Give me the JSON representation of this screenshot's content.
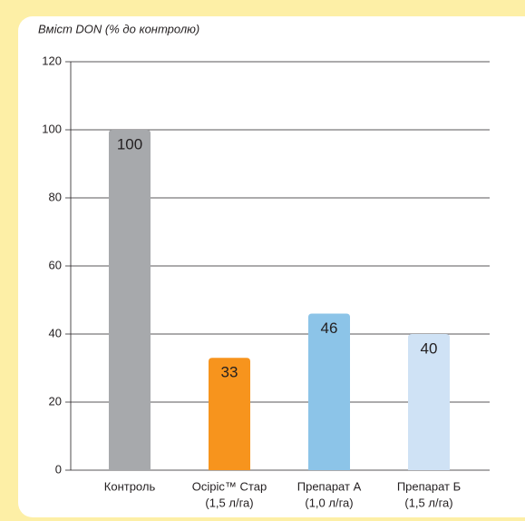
{
  "chart_data": {
    "type": "bar",
    "title": "Вміст DON (% до контролю)",
    "categories": [
      [
        "Контроль"
      ],
      [
        "Осіріс™ Стар",
        "(1,5 л/га)"
      ],
      [
        "Препарат А",
        "(1,0 л/га)"
      ],
      [
        "Препарат Б",
        "(1,5 л/га)"
      ]
    ],
    "values": [
      100,
      33,
      46,
      40
    ],
    "colors": [
      "#a7a9ac",
      "#f7941d",
      "#8cc4e8",
      "#cfe2f5"
    ],
    "ylim": [
      0,
      120
    ],
    "yticks": [
      0,
      20,
      40,
      60,
      80,
      100,
      120
    ],
    "grid": true
  }
}
